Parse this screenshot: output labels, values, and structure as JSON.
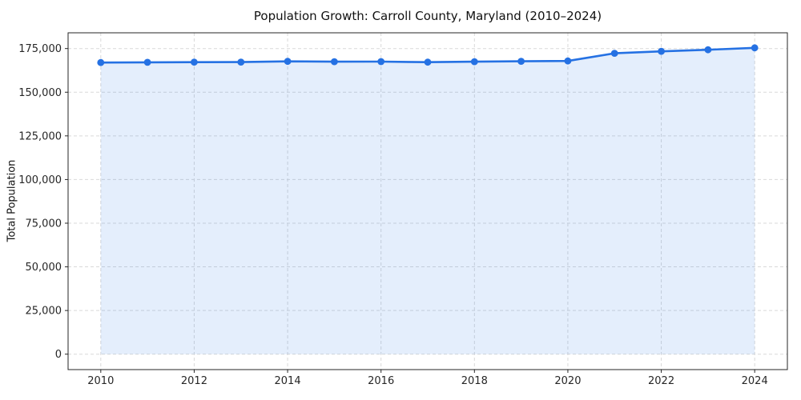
{
  "chart": {
    "title": "Population Growth: Carroll County, Maryland (2010–2024)",
    "ylabel": "Total Population",
    "xlabel": ""
  },
  "chart_data": {
    "type": "area",
    "title": "Population Growth: Carroll County, Maryland (2010–2024)",
    "xlabel": "",
    "ylabel": "Total Population",
    "x": [
      2010,
      2011,
      2012,
      2013,
      2014,
      2015,
      2016,
      2017,
      2018,
      2019,
      2020,
      2021,
      2022,
      2023,
      2024
    ],
    "values": [
      167000,
      167100,
      167200,
      167250,
      167650,
      167500,
      167550,
      167200,
      167500,
      167700,
      167900,
      172300,
      173400,
      174300,
      175400
    ],
    "x_ticks": [
      2010,
      2012,
      2014,
      2016,
      2018,
      2020,
      2022,
      2024
    ],
    "x_tick_labels": [
      "2010",
      "2012",
      "2014",
      "2016",
      "2018",
      "2020",
      "2022",
      "2024"
    ],
    "y_ticks": [
      0,
      25000,
      50000,
      75000,
      100000,
      125000,
      150000,
      175000
    ],
    "y_tick_labels": [
      "0",
      "25,000",
      "50,000",
      "75,000",
      "100,000",
      "125,000",
      "150,000",
      "175,000"
    ],
    "xlim": [
      2009.3,
      2024.7
    ],
    "ylim": [
      -8840,
      184020
    ],
    "fill_baseline": 0,
    "grid": true,
    "grid_style": "dashed",
    "legend_position": "none",
    "line_color": "#2571e3",
    "marker_color": "#2571e3",
    "fill_color": "rgba(37, 113, 227, 0.12)",
    "grid_color": "#d9d9d9",
    "spine_color": "#262626",
    "tick_text_color": "#262626"
  }
}
